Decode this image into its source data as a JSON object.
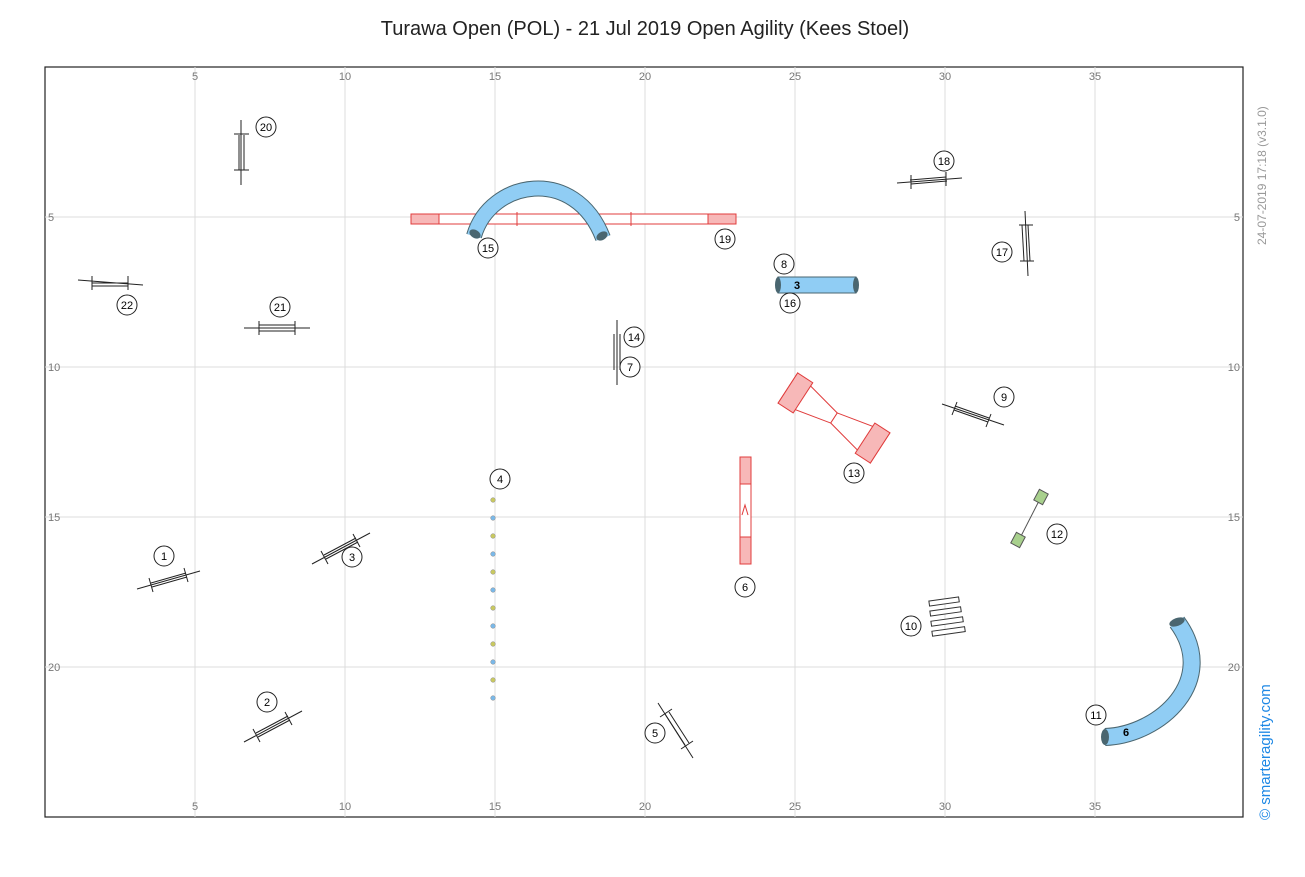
{
  "title": "Turawa Open (POL) - 21 Jul 2019 Open Agility (Kees Stoel)",
  "side": {
    "date": "24-07-2019 17:18  (v3.1.0)",
    "brand": "© smarteragility.com"
  },
  "axis": {
    "x_ticks": [
      "5",
      "10",
      "15",
      "20",
      "25",
      "30",
      "35"
    ],
    "y_ticks": [
      "5",
      "10",
      "15",
      "20"
    ]
  },
  "colors": {
    "tunnel": "#90cdf4",
    "tunnel_end": "#4a6670",
    "contact": "#f7b8b8",
    "contact_border": "#e03c3c",
    "tire_green": "#a8d08d",
    "weave_a": "#c8c860",
    "weave_b": "#7ab8e8"
  },
  "tunnel_labels": {
    "straight": "3",
    "curved": "6"
  },
  "numbers": {
    "n1": "1",
    "n2": "2",
    "n3": "3",
    "n4": "4",
    "n5": "5",
    "n6": "6",
    "n7": "7",
    "n8": "8",
    "n9": "9",
    "n10": "10",
    "n11": "11",
    "n12": "12",
    "n13": "13",
    "n14": "14",
    "n15": "15",
    "n16": "16",
    "n17": "17",
    "n18": "18",
    "n19": "19",
    "n20": "20",
    "n21": "21",
    "n22": "22"
  }
}
